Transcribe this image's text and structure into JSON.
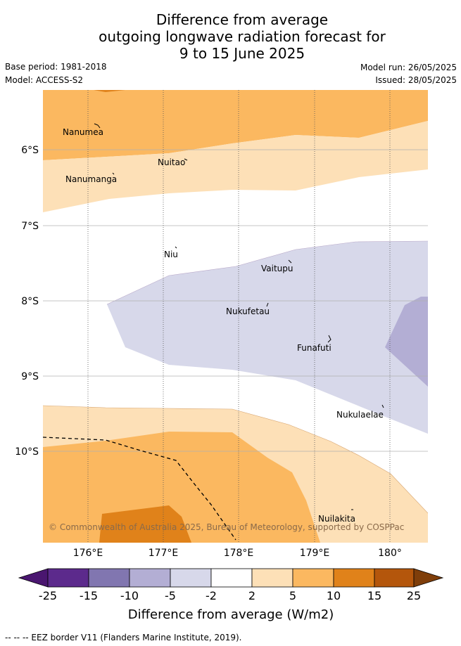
{
  "title": {
    "line1": "Difference from average",
    "line2": "outgoing longwave radiation forecast for",
    "line3": "9 to 15 June 2025"
  },
  "meta": {
    "base_period": "Base period: 1981-2018",
    "model": "Model: ACCESS-S2",
    "model_run": "Model run: 26/05/2025",
    "issued": "Issued: 28/05/2025"
  },
  "map": {
    "lat_ticks": [
      "6°S",
      "7°S",
      "8°S",
      "9°S",
      "10°S"
    ],
    "lon_ticks": [
      "176°E",
      "177°E",
      "178°E",
      "179°E",
      "180°"
    ],
    "places": [
      "Nanumea",
      "Nuitao",
      "Nanumanga",
      "Niu",
      "Vaitupu",
      "Nukufetau",
      "Funafuti",
      "Nukulaelae",
      "Nuilakita"
    ],
    "copyright": "© Commonwealth of Australia 2025, Bureau of Meteorology, supported by COSPPac"
  },
  "colorbar": {
    "labels": [
      "-25",
      "-15",
      "-10",
      "-5",
      "-2",
      "2",
      "5",
      "10",
      "15",
      "25"
    ],
    "colors": [
      "#4a1670",
      "#5c2a8c",
      "#8176b0",
      "#b3aed4",
      "#d7d8ea",
      "#ffffff",
      "#fde0b7",
      "#fbb860",
      "#e0821a",
      "#b4560c",
      "#7f3e0a"
    ],
    "title": "Difference from average (W/m2)"
  },
  "footer": "-- -- -- EEZ border V11 (Flanders Marine Institute, 2019)."
}
